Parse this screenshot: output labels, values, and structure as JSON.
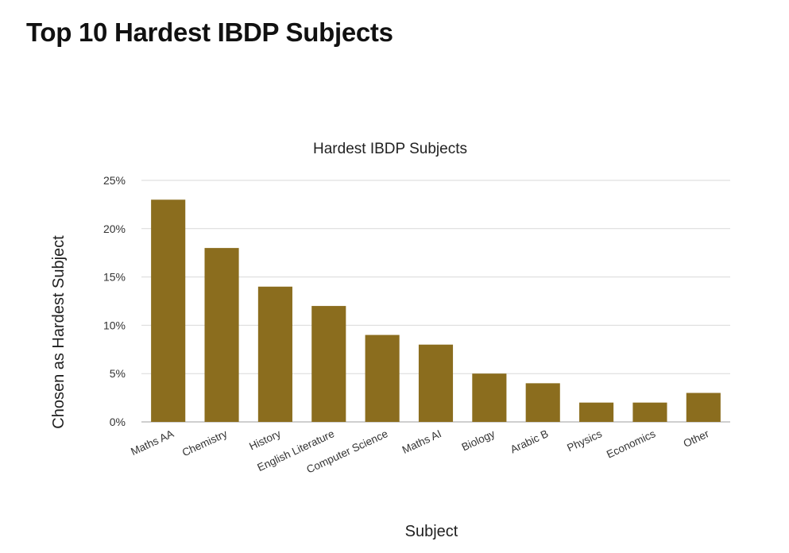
{
  "page": {
    "heading": "Top 10 Hardest IBDP Subjects"
  },
  "chart_data": {
    "type": "bar",
    "title": "Hardest IBDP Subjects",
    "xlabel": "Subject",
    "ylabel": "Chosen as Hardest Subject",
    "categories": [
      "Maths AA",
      "Chemistry",
      "History",
      "English Literature",
      "Computer Science",
      "Maths AI",
      "Biology",
      "Arabic B",
      "Physics",
      "Economics",
      "Other"
    ],
    "values": [
      23,
      18,
      14,
      12,
      9,
      8,
      5,
      4,
      2,
      2,
      3
    ],
    "unit": "%",
    "ylim": [
      0,
      25
    ],
    "yticks": [
      0,
      5,
      10,
      15,
      20,
      25
    ],
    "ytick_labels": [
      "0%",
      "5%",
      "10%",
      "15%",
      "20%",
      "25%"
    ],
    "grid": true,
    "legend": "none",
    "bar_color": "#8B6D1E",
    "grid_color": "#d9d9d9",
    "axis_color": "#bfbfbf"
  }
}
